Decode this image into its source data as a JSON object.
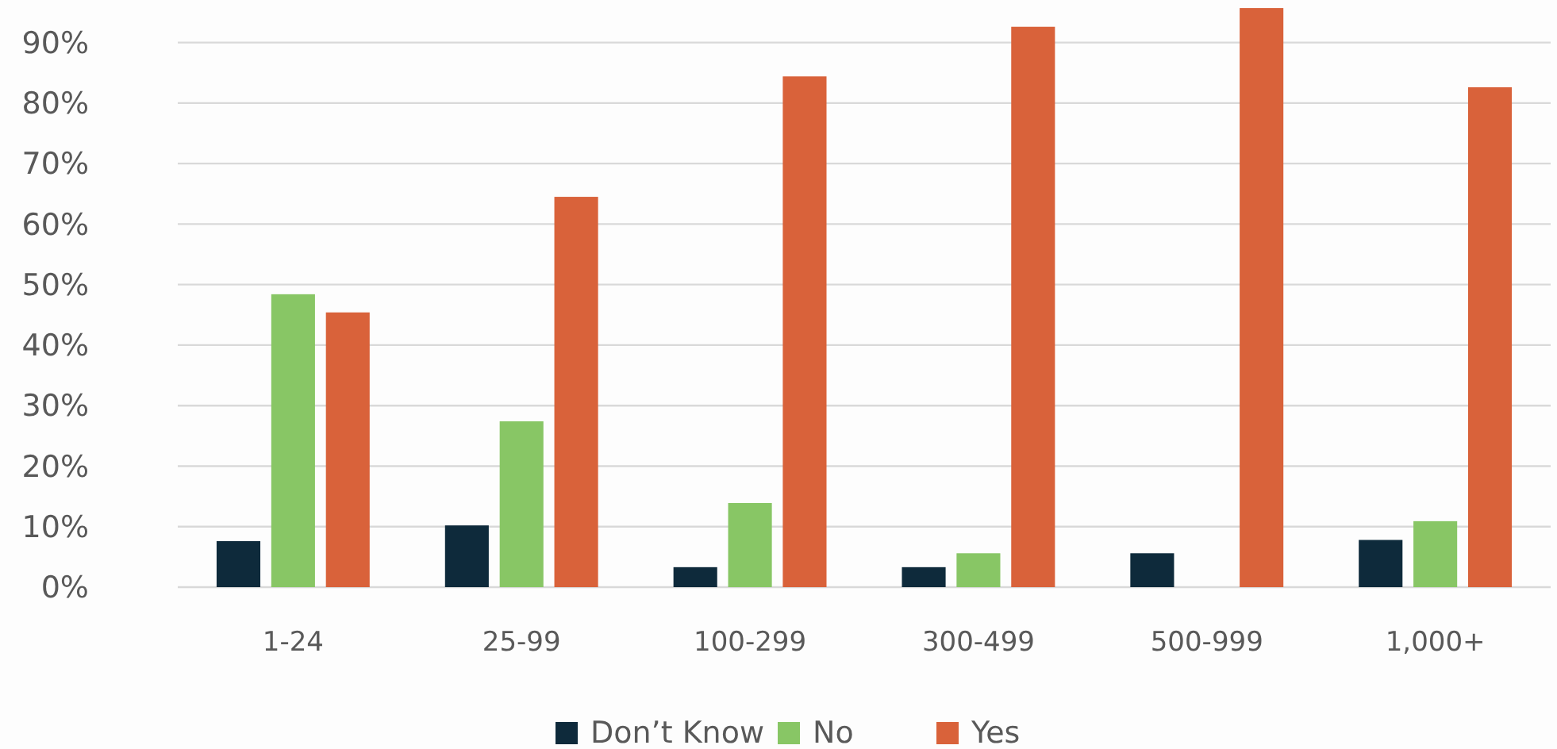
{
  "chart_data": {
    "type": "bar",
    "categories": [
      "1-24",
      "25-99",
      "100-299",
      "300-499",
      "500-999",
      "1,000+"
    ],
    "series": [
      {
        "name": "Don’t Know",
        "color": "#0e2a3b",
        "values": [
          7.6,
          10.2,
          3.3,
          3.3,
          5.6,
          7.8
        ]
      },
      {
        "name": "No",
        "color": "#88c665",
        "values": [
          48.4,
          27.4,
          13.9,
          5.6,
          0,
          10.9
        ]
      },
      {
        "name": "Yes",
        "color": "#d9623a",
        "values": [
          45.4,
          64.5,
          84.4,
          92.6,
          95.7,
          82.6
        ]
      }
    ],
    "ylim": [
      0,
      96.5
    ],
    "yticks": [
      {
        "value": 0,
        "label": "0%"
      },
      {
        "value": 10,
        "label": "10%"
      },
      {
        "value": 20,
        "label": "20%"
      },
      {
        "value": 30,
        "label": "30%"
      },
      {
        "value": 40,
        "label": "40%"
      },
      {
        "value": 50,
        "label": "50%"
      },
      {
        "value": 60,
        "label": "60%"
      },
      {
        "value": 70,
        "label": "70%"
      },
      {
        "value": 80,
        "label": "80%"
      },
      {
        "value": 90,
        "label": "90%"
      }
    ],
    "grid": "y",
    "legend": "bottom"
  }
}
